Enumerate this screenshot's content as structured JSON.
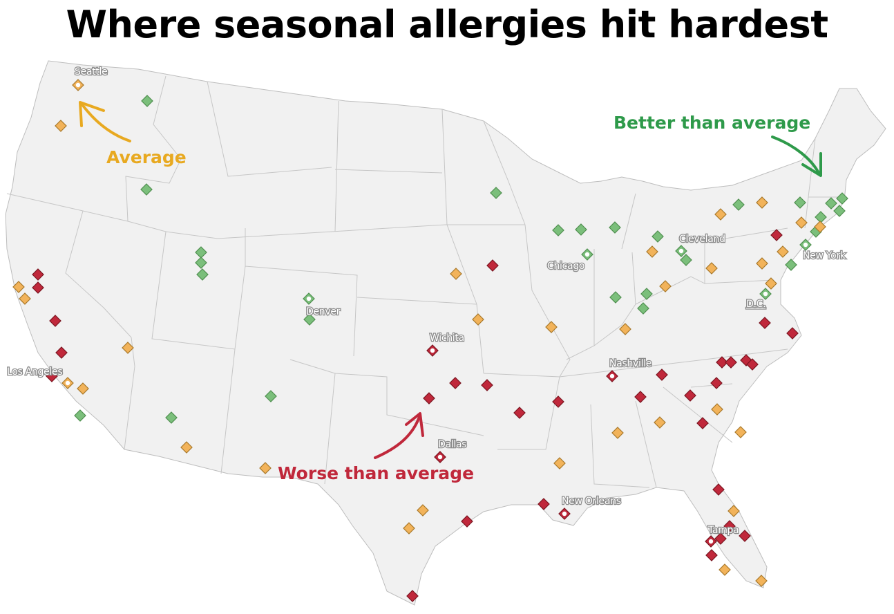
{
  "title": "Where seasonal allergies hit hardest",
  "colors": {
    "worse": "#c0283b",
    "average": "#f2b35a",
    "better": "#7bbf7b",
    "worse_text": "#c0283b",
    "average_text": "#e8a920",
    "better_text": "#2e9a4a",
    "land": "#f1f1f1",
    "border": "#c4c4c4"
  },
  "legend": {
    "better": "Better than average",
    "average": "Average",
    "worse": "Worse than average"
  },
  "cities": [
    {
      "name": "Seattle",
      "category": "average"
    },
    {
      "name": "Los Angeles",
      "category": "average"
    },
    {
      "name": "Denver",
      "category": "better"
    },
    {
      "name": "Wichita",
      "category": "worse"
    },
    {
      "name": "Dallas",
      "category": "worse"
    },
    {
      "name": "Chicago",
      "category": "better"
    },
    {
      "name": "Cleveland",
      "category": "better"
    },
    {
      "name": "New York",
      "category": "better"
    },
    {
      "name": "D.C.",
      "category": "better"
    },
    {
      "name": "Nashville",
      "category": "worse"
    },
    {
      "name": "New Orleans",
      "category": "worse"
    },
    {
      "name": "Tampa",
      "category": "worse"
    }
  ]
}
